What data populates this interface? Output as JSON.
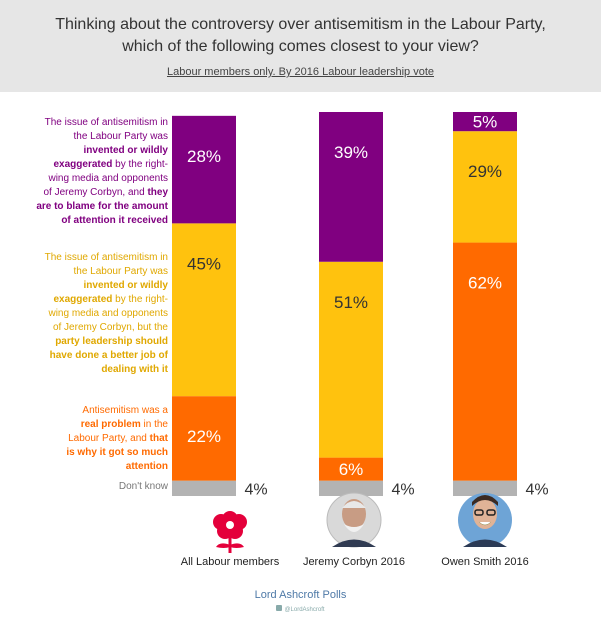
{
  "header": {
    "title_line1": "Thinking about the controversy over antisemitism in the Labour Party,",
    "title_line2": "which of the following comes closest to your view?",
    "subtitle": "Labour members only. By 2016 Labour leadership vote"
  },
  "descriptions": {
    "purple": [
      "The issue of antisemitism in",
      "the Labour Party was",
      "invented or wildly",
      "exaggerated by the right-",
      "wing media and opponents",
      "of Jeremy Corbyn, and they",
      "are to blame for the amount",
      "of attention it received"
    ],
    "yellow": [
      "The issue of antisemitism in",
      "the Labour Party was",
      "invented or wildly",
      "exaggerated by the right-",
      "wing media and opponents",
      "of Jeremy Corbyn, but the",
      "party leadership should",
      "have done a better job of",
      "dealing with it"
    ],
    "orange": [
      "Antisemitism was a",
      "real problem in the",
      "Labour Party, and that",
      "is why it got so much",
      "attention"
    ],
    "dontknow": "Don't know"
  },
  "footer": {
    "source": "Lord Ashcroft Polls",
    "handle": "@LordAshcroft"
  },
  "chart_data": {
    "type": "bar",
    "stacked": true,
    "percent": true,
    "categories": [
      "All Labour members",
      "Jeremy Corbyn 2016",
      "Owen Smith 2016"
    ],
    "series": [
      {
        "name": "Don't know",
        "color": "#b3b3b3",
        "values": [
          4,
          4,
          4
        ]
      },
      {
        "name": "Antisemitism was a real problem in the Labour Party, and that is why it got so much attention",
        "color": "#ff6a00",
        "values": [
          22,
          6,
          62
        ]
      },
      {
        "name": "The issue of antisemitism in the Labour Party was invented or wildly exaggerated by the right-wing media and opponents of Jeremy Corbyn, but the party leadership should have done a better job of dealing with it",
        "color": "#ffc20e",
        "values": [
          45,
          51,
          29
        ]
      },
      {
        "name": "The issue of antisemitism in the Labour Party was invented or wildly exaggerated by the right-wing media and opponents of Jeremy Corbyn, and they are to blame for the amount of attention it received",
        "color": "#800080",
        "values": [
          28,
          39,
          5
        ]
      }
    ],
    "labels": [
      [
        "4%",
        "22%",
        "45%",
        "28%"
      ],
      [
        "4%",
        "6%",
        "51%",
        "39%"
      ],
      [
        "4%",
        "62%",
        "29%",
        "5%"
      ]
    ],
    "ylim": [
      0,
      100
    ],
    "legend": "left",
    "grid": false
  }
}
